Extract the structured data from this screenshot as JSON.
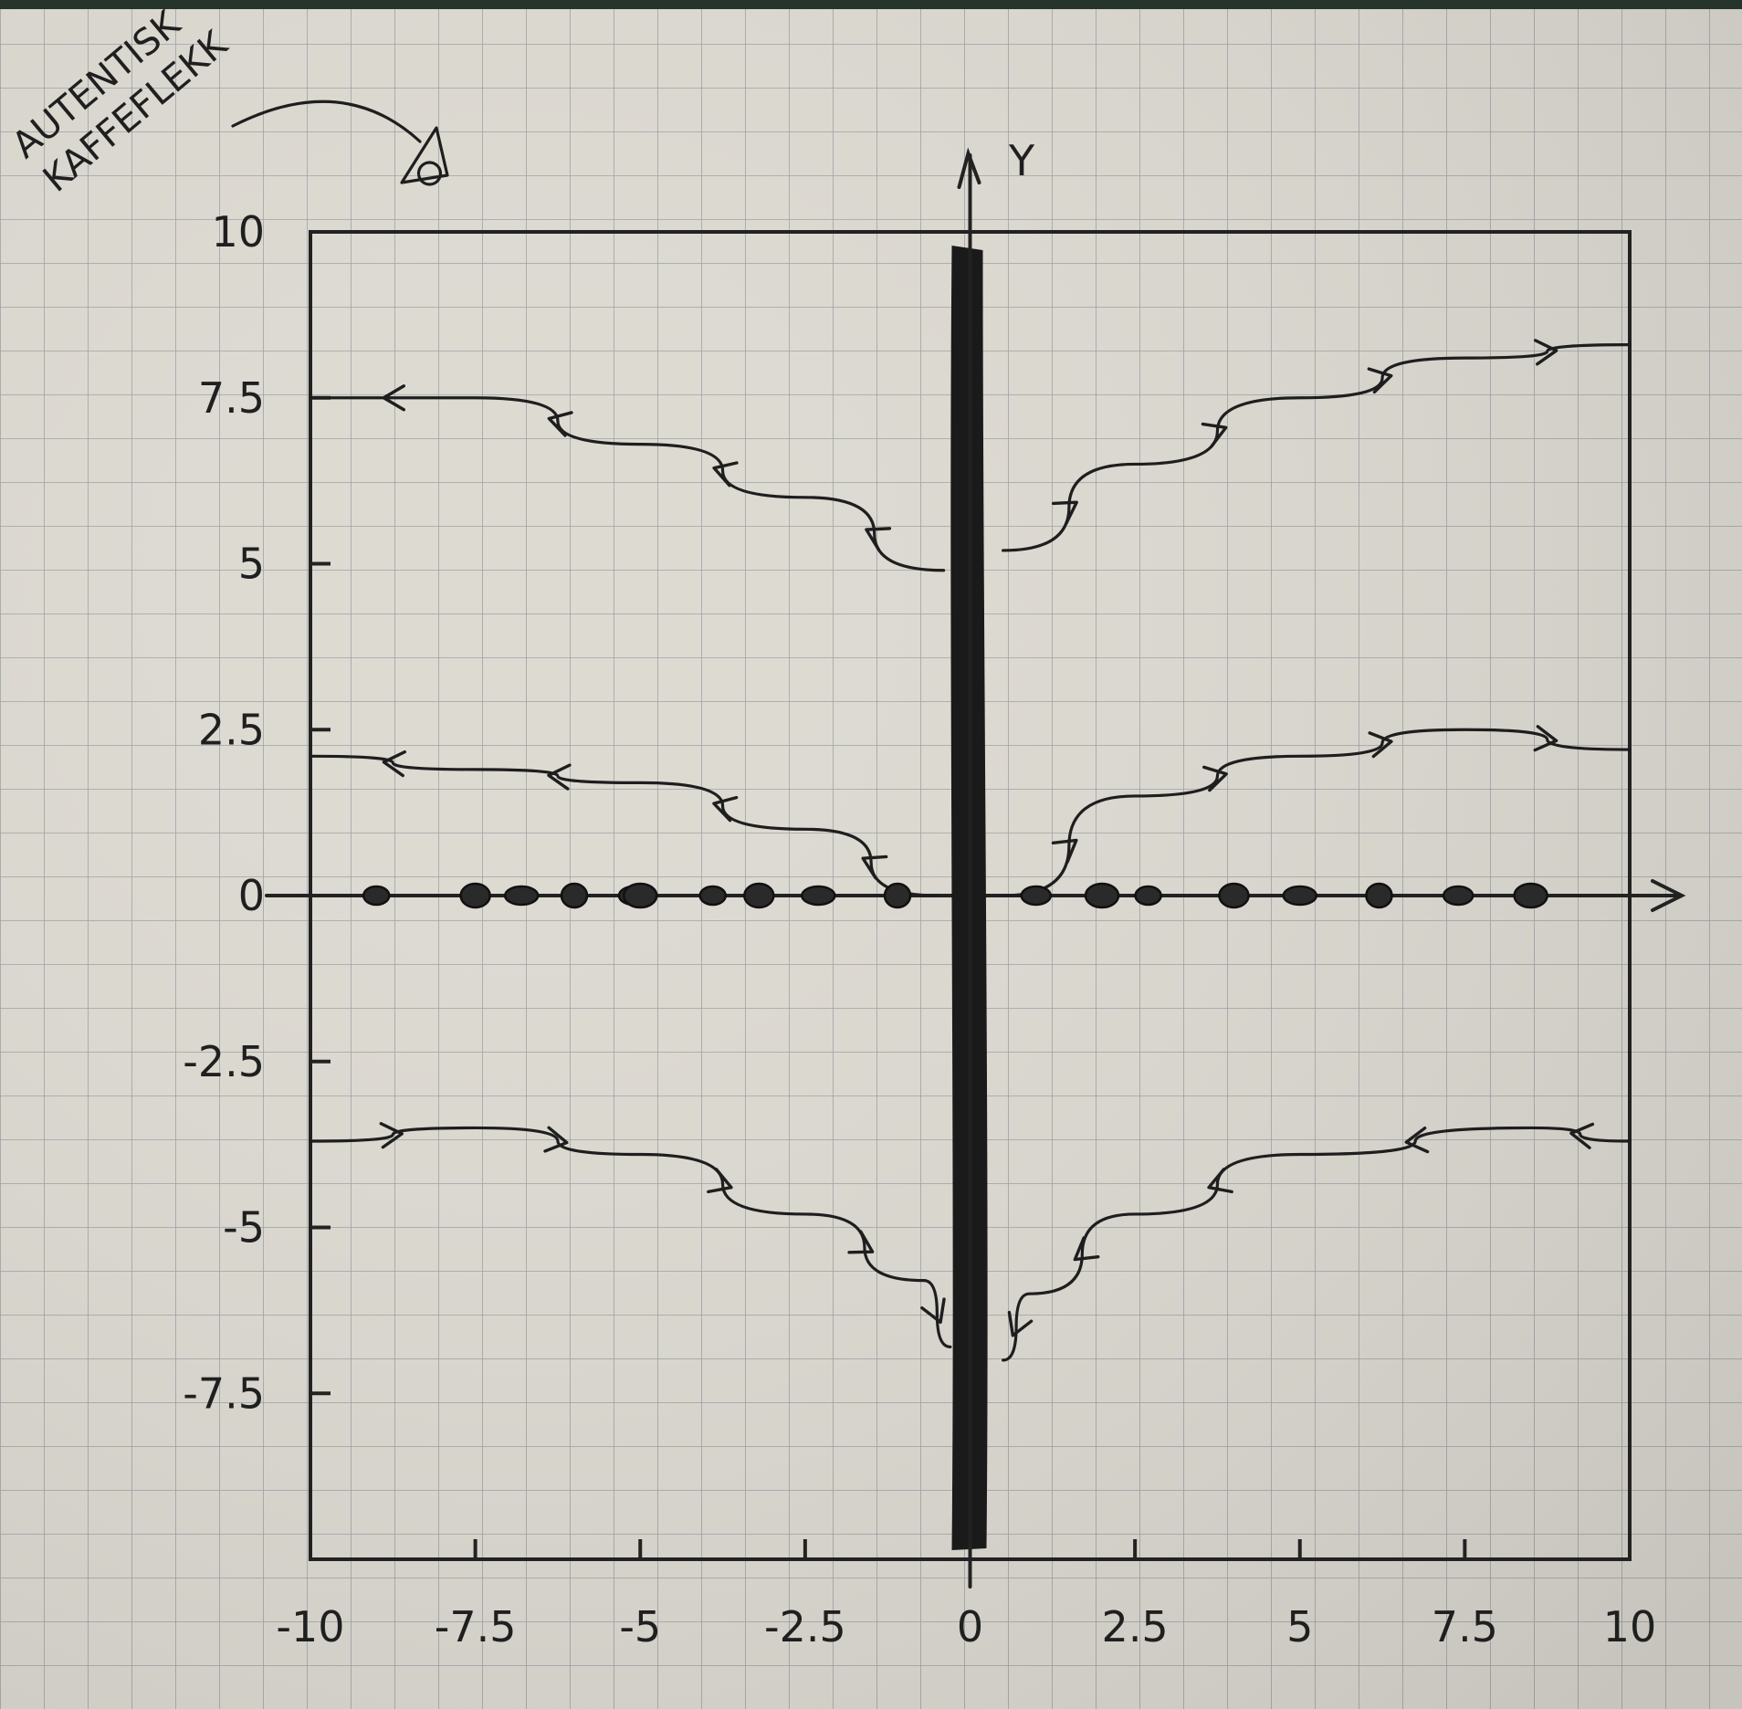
{
  "diagram": {
    "annotation": {
      "lines": [
        "AUTENTISK",
        "KAFFEFLEKK"
      ]
    },
    "axes": {
      "y_name": "Y",
      "x_ticks": [
        {
          "value": -10,
          "label": "-10"
        },
        {
          "value": -7.5,
          "label": "-7.5"
        },
        {
          "value": -5,
          "label": "-5"
        },
        {
          "value": -2.5,
          "label": "-2.5"
        },
        {
          "value": 0,
          "label": "0"
        },
        {
          "value": 2.5,
          "label": "2.5"
        },
        {
          "value": 5,
          "label": "5"
        },
        {
          "value": 7.5,
          "label": "7.5"
        },
        {
          "value": 10,
          "label": "10"
        }
      ],
      "y_ticks": [
        {
          "value": 10,
          "label": "10"
        },
        {
          "value": 7.5,
          "label": "7.5"
        },
        {
          "value": 5,
          "label": "5"
        },
        {
          "value": 2.5,
          "label": "2.5"
        },
        {
          "value": 0,
          "label": "0"
        },
        {
          "value": -2.5,
          "label": "-2.5"
        },
        {
          "value": -5,
          "label": "-5"
        },
        {
          "value": -7.5,
          "label": "-7.5"
        }
      ],
      "xlim": [
        -10,
        10
      ],
      "ylim": [
        -10,
        10
      ]
    },
    "equilibrium_points_x": [
      -9,
      -7.5,
      -6.8,
      -6,
      -5.1,
      -5,
      -3.9,
      -3.2,
      -2.3,
      -1.1,
      1,
      2,
      2.7,
      4,
      5,
      6.2,
      7.4,
      8.5
    ],
    "trajectories": [
      {
        "points": [
          [
            -10,
            7.5
          ],
          [
            -7.5,
            7.5
          ],
          [
            -5,
            6.8
          ],
          [
            -2.5,
            6.0
          ],
          [
            -0.4,
            4.9
          ]
        ],
        "direction": "toward-left"
      },
      {
        "points": [
          [
            -10,
            2.1
          ],
          [
            -7.5,
            1.9
          ],
          [
            -5,
            1.7
          ],
          [
            -2.5,
            1.0
          ],
          [
            -0.5,
            0
          ]
        ],
        "direction": "toward-left"
      },
      {
        "points": [
          [
            -10,
            -3.7
          ],
          [
            -7.5,
            -3.5
          ],
          [
            -5,
            -3.9
          ],
          [
            -2.5,
            -4.8
          ],
          [
            -0.7,
            -5.8
          ],
          [
            -0.3,
            -6.8
          ]
        ],
        "direction": "toward-right"
      },
      {
        "points": [
          [
            0.5,
            5.2
          ],
          [
            2.5,
            6.5
          ],
          [
            5,
            7.5
          ],
          [
            7.5,
            8.1
          ],
          [
            10,
            8.3
          ]
        ],
        "direction": "toward-right"
      },
      {
        "points": [
          [
            0.5,
            0
          ],
          [
            2.5,
            1.5
          ],
          [
            5,
            2.1
          ],
          [
            7.5,
            2.5
          ],
          [
            10,
            2.2
          ]
        ],
        "direction": "toward-right"
      },
      {
        "points": [
          [
            10,
            -3.7
          ],
          [
            8.5,
            -3.5
          ],
          [
            5,
            -3.9
          ],
          [
            2.5,
            -4.8
          ],
          [
            0.9,
            -6.0
          ],
          [
            0.5,
            -7.0
          ]
        ],
        "direction": "toward-left"
      }
    ],
    "thick_axis": "y"
  }
}
